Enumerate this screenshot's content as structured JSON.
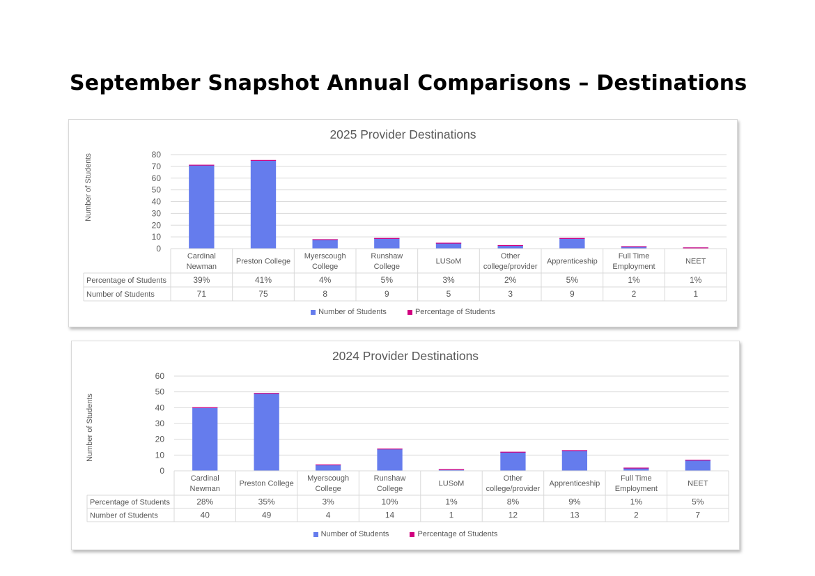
{
  "page": {
    "title": "September Snapshot Annual Comparisons – Destinations"
  },
  "colors": {
    "number_series": "#657ced",
    "percentage_series": "#d1007f",
    "gridline": "#d9d9d9",
    "text": "#595959"
  },
  "legend": {
    "items": [
      {
        "label": "Number of Students",
        "color": "#657ced"
      },
      {
        "label": "Percentage of Students",
        "color": "#d1007f"
      }
    ]
  },
  "chart_data": [
    {
      "type": "bar",
      "stacked": true,
      "title": "2025 Provider Destinations",
      "ylabel": "Number of Students",
      "ylim": [
        0,
        80
      ],
      "yticks": [
        "0",
        "10",
        "20",
        "30",
        "40",
        "50",
        "60",
        "70",
        "80"
      ],
      "gridlines": true,
      "legend_position": "bottom",
      "data_table": true,
      "categories": [
        [
          "Cardinal",
          "Newman"
        ],
        [
          "Preston College"
        ],
        [
          "Myerscough",
          "College"
        ],
        [
          "Runshaw",
          "College"
        ],
        [
          "LUSoM"
        ],
        [
          "Other",
          "college/provider"
        ],
        [
          "Apprenticeship"
        ],
        [
          "Full Time",
          "Employment"
        ],
        [
          "NEET"
        ]
      ],
      "series": [
        {
          "name": "Percentage of Students",
          "values": [
            0.39,
            0.41,
            0.04,
            0.05,
            0.03,
            0.02,
            0.05,
            0.01,
            0.01
          ],
          "display": [
            "39%",
            "41%",
            "4%",
            "5%",
            "3%",
            "2%",
            "5%",
            "1%",
            "1%"
          ]
        },
        {
          "name": "Number of Students",
          "values": [
            71,
            75,
            8,
            9,
            5,
            3,
            9,
            2,
            1
          ],
          "display": [
            "71",
            "75",
            "8",
            "9",
            "5",
            "3",
            "9",
            "2",
            "1"
          ]
        }
      ]
    },
    {
      "type": "bar",
      "stacked": true,
      "title": "2024 Provider Destinations",
      "ylabel": "Number of Students",
      "ylim": [
        0,
        60
      ],
      "yticks": [
        "0",
        "10",
        "20",
        "30",
        "40",
        "50",
        "60"
      ],
      "gridlines": true,
      "legend_position": "bottom",
      "data_table": true,
      "categories": [
        [
          "Cardinal",
          "Newman"
        ],
        [
          "Preston College"
        ],
        [
          "Myerscough",
          "College"
        ],
        [
          "Runshaw",
          "College"
        ],
        [
          "LUSoM"
        ],
        [
          "Other",
          "college/provider"
        ],
        [
          "Apprenticeship"
        ],
        [
          "Full Time",
          "Employment"
        ],
        [
          "NEET"
        ]
      ],
      "series": [
        {
          "name": "Percentage of Students",
          "values": [
            0.28,
            0.35,
            0.03,
            0.1,
            0.01,
            0.08,
            0.09,
            0.01,
            0.05
          ],
          "display": [
            "28%",
            "35%",
            "3%",
            "10%",
            "1%",
            "8%",
            "9%",
            "1%",
            "5%"
          ]
        },
        {
          "name": "Number of Students",
          "values": [
            40,
            49,
            4,
            14,
            1,
            12,
            13,
            2,
            7
          ],
          "display": [
            "40",
            "49",
            "4",
            "14",
            "1",
            "12",
            "13",
            "2",
            "7"
          ]
        }
      ]
    }
  ]
}
